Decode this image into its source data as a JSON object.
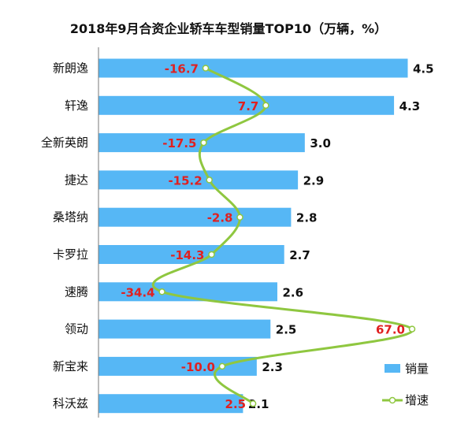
{
  "chart_data": {
    "type": "bar",
    "title": "2018年9月合资企业轿车车型销量TOP10（万辆，%）",
    "categories": [
      "新朗逸",
      "轩逸",
      "全新英朗",
      "捷达",
      "桑塔纳",
      "卡罗拉",
      "速腾",
      "领动",
      "新宝来",
      "科沃兹"
    ],
    "series": [
      {
        "name": "销量",
        "type": "bar",
        "values": [
          4.5,
          4.3,
          3.0,
          2.9,
          2.8,
          2.7,
          2.6,
          2.5,
          2.3,
          2.1
        ]
      },
      {
        "name": "增速",
        "type": "line",
        "values": [
          -16.7,
          7.7,
          -17.5,
          -15.2,
          -2.8,
          -14.3,
          -34.4,
          67.0,
          -10.0,
          2.5
        ]
      }
    ],
    "value_labels": [
      "4.5",
      "4.3",
      "3.0",
      "2.9",
      "2.8",
      "2.7",
      "2.6",
      "2.5",
      "2.3",
      "2.1"
    ],
    "growth_labels": [
      "-16.7",
      "7.7",
      "-17.5",
      "-15.2",
      "-2.8",
      "-14.3",
      "-34.4",
      "67.0",
      "-10.0",
      "2.5"
    ],
    "xlim": [
      0,
      4.6
    ],
    "growth_range": [
      -60,
      70
    ],
    "legend_position": "bottom-right",
    "grid": false,
    "colors": {
      "bar": "#56b7f5",
      "line": "#8fc740",
      "growth_label": "#e02020"
    }
  }
}
